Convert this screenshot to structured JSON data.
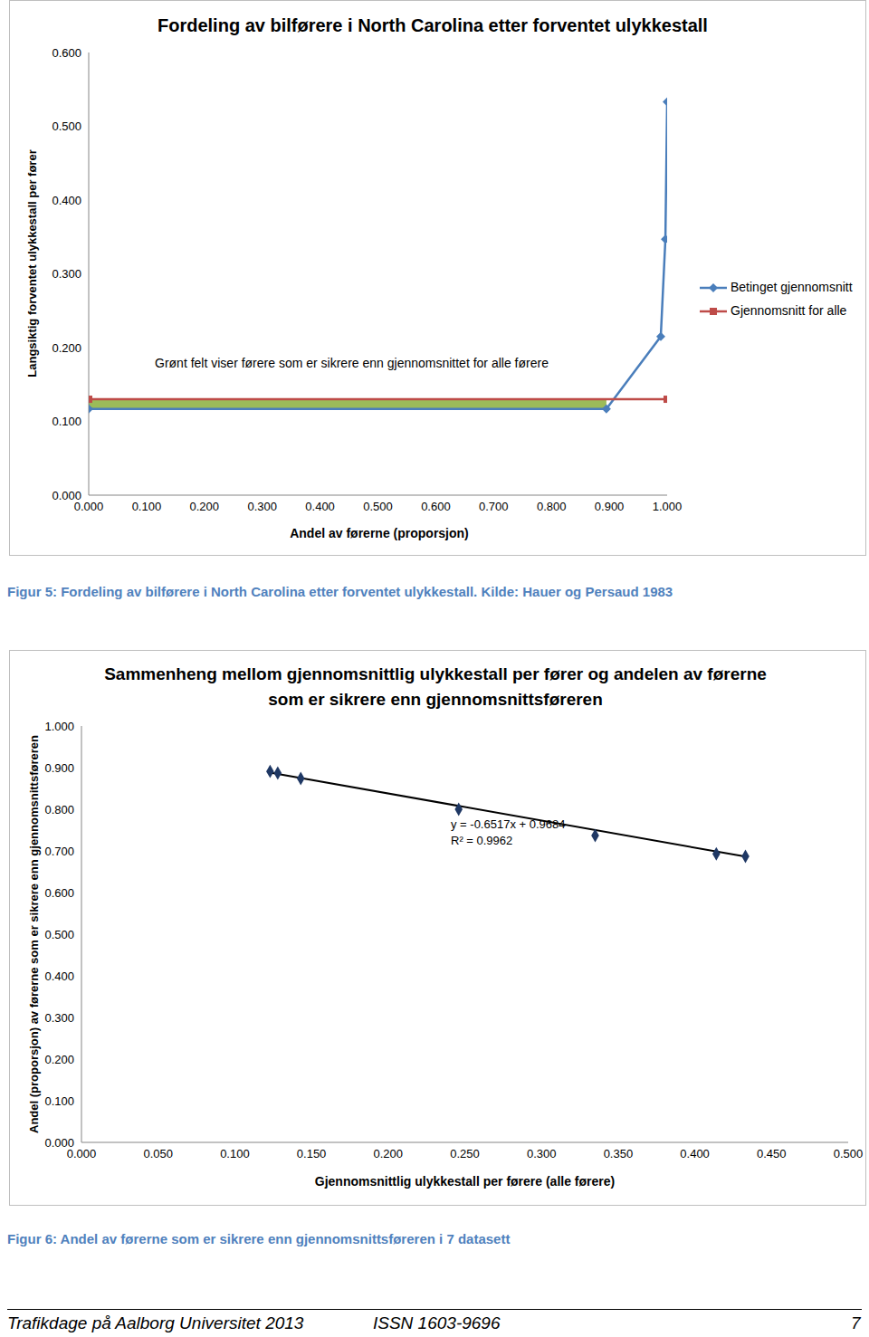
{
  "chart_data": [
    {
      "type": "line",
      "title": "Fordeling av bilførere i North Carolina etter forventet ulykkestall",
      "xlabel": "Andel av førerne (proporsjon)",
      "ylabel": "Langsiktig forventet ulykkestall per fører",
      "annotation": "Grønt felt viser førere som er sikrere enn gjennomsnittet for alle førere",
      "xlim": [
        0,
        1
      ],
      "xticks": [
        {
          "value": 0,
          "label": "0.000"
        },
        {
          "value": 0.1,
          "label": "0.100"
        },
        {
          "value": 0.2,
          "label": "0.200"
        },
        {
          "value": 0.3,
          "label": "0.300"
        },
        {
          "value": 0.4,
          "label": "0.400"
        },
        {
          "value": 0.5,
          "label": "0.500"
        },
        {
          "value": 0.6,
          "label": "0.600"
        },
        {
          "value": 0.7,
          "label": "0.700"
        },
        {
          "value": 0.8,
          "label": "0.800"
        },
        {
          "value": 0.9,
          "label": "0.900"
        },
        {
          "value": 1,
          "label": "1.000"
        }
      ],
      "ylim": [
        0,
        0.6
      ],
      "yticks": [
        {
          "value": 0,
          "label": "0.000"
        },
        {
          "value": 0.1,
          "label": "0.100"
        },
        {
          "value": 0.2,
          "label": "0.200"
        },
        {
          "value": 0.3,
          "label": "0.300"
        },
        {
          "value": 0.4,
          "label": "0.400"
        },
        {
          "value": 0.5,
          "label": "0.500"
        },
        {
          "value": 0.6,
          "label": "0.600"
        }
      ],
      "grid": false,
      "legend": "right",
      "series": [
        {
          "name": "Betinget gjennomsnitt",
          "color": "#4a7ebb",
          "marker": "diamond",
          "x": [
            0,
            0.895,
            0.989,
            0.997,
            1.0
          ],
          "values": [
            0.117,
            0.117,
            0.215,
            0.347,
            0.533
          ]
        },
        {
          "name": "Gjennomsnitt for alle",
          "color": "#be4b48",
          "marker": "square",
          "x": [
            0,
            1.0
          ],
          "values": [
            0.13,
            0.13
          ]
        }
      ]
    },
    {
      "type": "scatter",
      "title": "Sammenheng mellom gjennomsnittlig ulykkestall per fører og andelen av førerne som er sikrere enn gjennomsnittsføreren",
      "xlabel": "Gjennomsnittlig ulykkestall per førere (alle førere)",
      "ylabel": "Andel (proporsjon) av førerne som er sikrere enn gjennomsnittsføreren",
      "x": [
        0.123,
        0.128,
        0.143,
        0.246,
        0.335,
        0.414,
        0.433
      ],
      "values": [
        0.891,
        0.887,
        0.874,
        0.8,
        0.737,
        0.693,
        0.687
      ],
      "color": "#1f3864",
      "marker": "diamond",
      "trendline": {
        "slope": -0.6517,
        "intercept": 0.9684,
        "labels": [
          "y = -0.6517x + 0.9684",
          "R² = 0.9962"
        ]
      },
      "xlim": [
        0,
        0.5
      ],
      "xticks": [
        {
          "value": 0,
          "label": "0.000"
        },
        {
          "value": 0.05,
          "label": "0.050"
        },
        {
          "value": 0.1,
          "label": "0.100"
        },
        {
          "value": 0.15,
          "label": "0.150"
        },
        {
          "value": 0.2,
          "label": "0.200"
        },
        {
          "value": 0.25,
          "label": "0.250"
        },
        {
          "value": 0.3,
          "label": "0.300"
        },
        {
          "value": 0.35,
          "label": "0.350"
        },
        {
          "value": 0.4,
          "label": "0.400"
        },
        {
          "value": 0.45,
          "label": "0.450"
        },
        {
          "value": 0.5,
          "label": "0.500"
        }
      ],
      "ylim": [
        0,
        1
      ],
      "yticks": [
        {
          "value": 0,
          "label": "0.000"
        },
        {
          "value": 0.1,
          "label": "0.100"
        },
        {
          "value": 0.2,
          "label": "0.200"
        },
        {
          "value": 0.3,
          "label": "0.300"
        },
        {
          "value": 0.4,
          "label": "0.400"
        },
        {
          "value": 0.5,
          "label": "0.500"
        },
        {
          "value": 0.6,
          "label": "0.600"
        },
        {
          "value": 0.7,
          "label": "0.700"
        },
        {
          "value": 0.8,
          "label": "0.800"
        },
        {
          "value": 0.9,
          "label": "0.900"
        },
        {
          "value": 1,
          "label": "1.000"
        }
      ],
      "grid": false
    }
  ],
  "page": {
    "captions": [
      "Figur 5: Fordeling av bilførere i North Carolina etter forventet ulykkestall. Kilde: Hauer og Persaud 1983",
      "Figur 6: Andel av førerne som er sikrere enn gjennomsnittsføreren i 7 datasett"
    ],
    "footer": [
      "Trafikdage på Aalborg Universitet 2013",
      "ISSN 1603-9696",
      "7"
    ]
  }
}
